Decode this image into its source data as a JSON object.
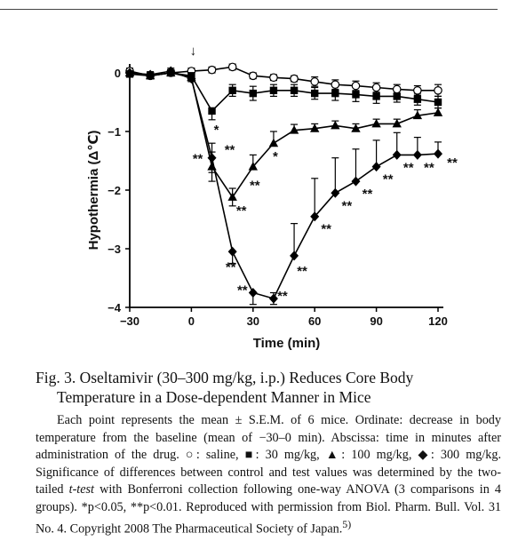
{
  "chart_data": {
    "type": "line",
    "xlabel": "Time (min)",
    "ylabel": "Hypothermia (Δ℃)",
    "xlim": [
      -30,
      120
    ],
    "ylim": [
      -4,
      0
    ],
    "x_ticks": [
      -30,
      0,
      30,
      60,
      90,
      120
    ],
    "y_ticks": [
      0,
      -1,
      -2,
      -3,
      -4
    ],
    "drug_marker_x": 0,
    "drug_marker_symbol": "↓",
    "x": [
      -30,
      -20,
      -10,
      0,
      10,
      20,
      30,
      40,
      50,
      60,
      70,
      80,
      90,
      100,
      110,
      120
    ],
    "series": [
      {
        "marker": "open-circle",
        "y": [
          0.03,
          -0.05,
          0.0,
          0.03,
          0.05,
          0.1,
          -0.05,
          -0.08,
          -0.1,
          -0.15,
          -0.2,
          -0.22,
          -0.25,
          -0.28,
          -0.3,
          -0.3
        ],
        "sem": [
          0.05,
          0.05,
          0.05,
          0.05,
          0.05,
          0.05,
          0.05,
          0.05,
          0.05,
          0.08,
          0.08,
          0.08,
          0.08,
          0.08,
          0.08,
          0.1
        ],
        "sig": [
          "",
          "",
          "",
          "",
          "",
          "",
          "",
          "",
          "",
          "",
          "",
          "",
          "",
          "",
          "",
          ""
        ]
      },
      {
        "marker": "filled-square",
        "y": [
          -0.02,
          -0.05,
          0.0,
          -0.05,
          -0.65,
          -0.3,
          -0.35,
          -0.3,
          -0.3,
          -0.35,
          -0.35,
          -0.37,
          -0.4,
          -0.4,
          -0.45,
          -0.5
        ],
        "sem": [
          0.05,
          0.05,
          0.05,
          0.05,
          0.15,
          0.1,
          0.12,
          0.1,
          0.1,
          0.1,
          0.12,
          0.12,
          0.12,
          0.1,
          0.1,
          0.1
        ],
        "sig": [
          "",
          "",
          "",
          "",
          "*",
          "",
          "",
          "",
          "",
          "",
          "",
          "",
          "",
          "",
          "",
          ""
        ]
      },
      {
        "marker": "filled-triangle",
        "y": [
          0.0,
          -0.05,
          0.0,
          -0.08,
          -1.6,
          -2.12,
          -1.6,
          -1.2,
          -0.98,
          -0.95,
          -0.9,
          -0.95,
          -0.87,
          -0.87,
          -0.73,
          -0.68
        ],
        "sem": [
          0.05,
          0.05,
          0.05,
          0.05,
          0.25,
          0.15,
          0.2,
          0.2,
          0.1,
          0.08,
          0.08,
          0.08,
          0.08,
          0.08,
          0.1,
          0.08
        ],
        "sig": [
          "",
          "",
          "",
          "",
          "**",
          "**",
          "**",
          "*",
          "",
          "",
          "",
          "",
          "",
          "",
          "",
          ""
        ]
      },
      {
        "marker": "filled-diamond",
        "y": [
          0.0,
          -0.03,
          0.03,
          -0.1,
          -1.45,
          -3.05,
          -3.75,
          -3.85,
          -3.12,
          -2.45,
          -2.05,
          -1.85,
          -1.6,
          -1.4,
          -1.4,
          -1.38
        ],
        "sem": [
          0.05,
          0.05,
          0.05,
          0.05,
          0.25,
          0.2,
          0.2,
          0.1,
          0.55,
          0.65,
          0.6,
          0.55,
          0.45,
          0.38,
          0.3,
          0.2
        ],
        "sig": [
          "",
          "",
          "",
          "",
          "**",
          "**",
          "**",
          "**",
          "**",
          "**",
          "**",
          "**",
          "**",
          "**",
          "**",
          "**"
        ]
      }
    ]
  },
  "caption": {
    "title_line1": "Fig. 3.   Oseltamivir (30–300 mg/kg, i.p.) Reduces Core Body",
    "title_line2": "Temperature in a Dose-dependent Manner in Mice",
    "legend_p1": "Each point represents the mean ± S.E.M. of 6 mice. Ordinate: decrease in body temperature from the baseline (mean of −30–0 min). Abscissa: time in minutes after administration of the drug. ○: saline, ■: 30 mg/kg, ▲: 100 mg/kg, ◆: 300 mg/kg. Significance of differences between control and test values was determined by the two-tailed",
    "legend_ttest": "t-test",
    "legend_p2": "with Bonferroni collection following one-way ANOVA (3 comparisons in 4 groups).",
    "legend_p3": "*p<0.05, **p<0.01. Reproduced with permission from Biol. Pharm. Bull. Vol. 31 No. 4. Copyright 2008 The Pharmaceutical Society of Japan.",
    "legend_ref": "5)"
  }
}
